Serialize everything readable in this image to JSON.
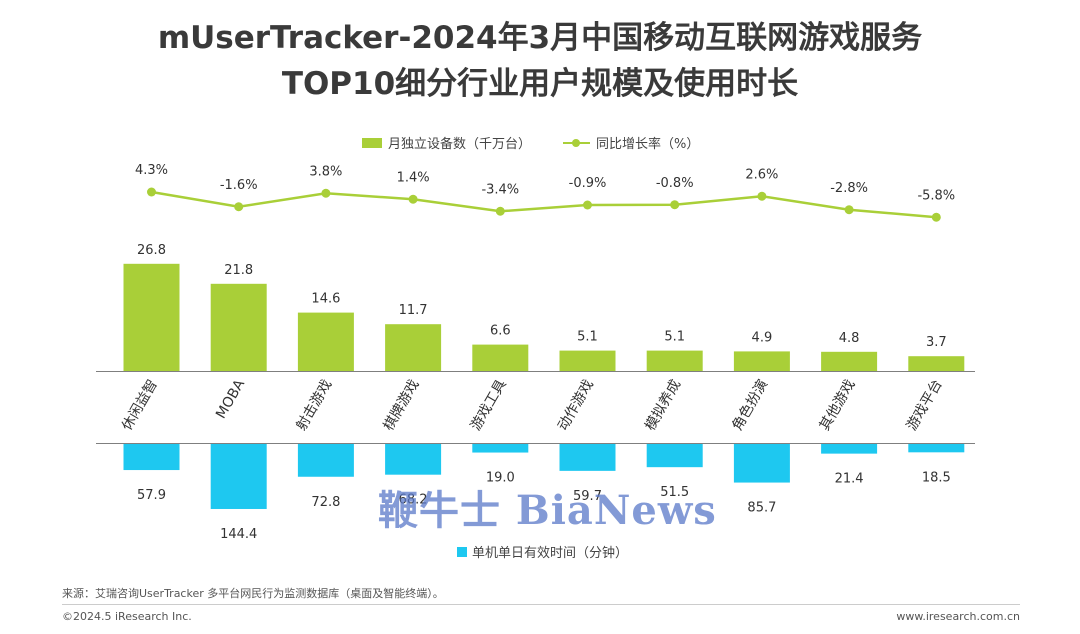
{
  "title": {
    "line1": "mUserTracker-2024年3月中国移动互联网游戏服务",
    "line2": "TOP10细分行业用户规模及使用时长"
  },
  "colors": {
    "bar_green": "#a9cf38",
    "line_green": "#a9cf38",
    "bar_blue": "#1ec8f0",
    "axis_line": "#7f7f7f"
  },
  "chart_data": {
    "type": "bar",
    "categories": [
      "休闲益智",
      "MOBA",
      "射击游戏",
      "棋牌游戏",
      "游戏工具",
      "动作游戏",
      "模拟养成",
      "角色扮演",
      "其他游戏",
      "游戏平台"
    ],
    "series": [
      {
        "name": "月独立设备数（千万台）",
        "type": "bar",
        "direction": "up",
        "values": [
          26.8,
          21.8,
          14.6,
          11.7,
          6.6,
          5.1,
          5.1,
          4.9,
          4.8,
          3.7
        ],
        "labels": [
          "26.8",
          "21.8",
          "14.6",
          "11.7",
          "6.6",
          "5.1",
          "5.1",
          "4.9",
          "4.8",
          "3.7"
        ]
      },
      {
        "name": "同比增长率（%）",
        "type": "line",
        "values": [
          4.3,
          -1.6,
          3.8,
          1.4,
          -3.4,
          -0.9,
          -0.8,
          2.6,
          -2.8,
          -5.8
        ],
        "labels": [
          "4.3%",
          "-1.6%",
          "3.8%",
          "1.4%",
          "-3.4%",
          "-0.9%",
          "-0.8%",
          "2.6%",
          "-2.8%",
          "-5.8%"
        ]
      },
      {
        "name": "单机单日有效时间（分钟）",
        "type": "bar",
        "direction": "down",
        "values": [
          57.9,
          144.4,
          72.8,
          68.2,
          19.0,
          59.7,
          51.5,
          85.7,
          21.4,
          18.5
        ],
        "labels": [
          "57.9",
          "144.4",
          "72.8",
          "68.2",
          "19.0",
          "59.7",
          "51.5",
          "85.7",
          "21.4",
          "18.5"
        ]
      }
    ],
    "legend_top": [
      "月独立设备数（千万台）",
      "同比增长率（%）"
    ],
    "legend_bottom": "单机单日有效时间（分钟）",
    "grid": false
  },
  "footer": {
    "source": "来源：艾瑞咨询UserTracker 多平台网民行为监测数据库（桌面及智能终端）。",
    "copyright": "©2024.5 iResearch Inc.",
    "site": "www.iresearch.com.cn"
  },
  "watermark": "鞭牛士 BiaNews"
}
